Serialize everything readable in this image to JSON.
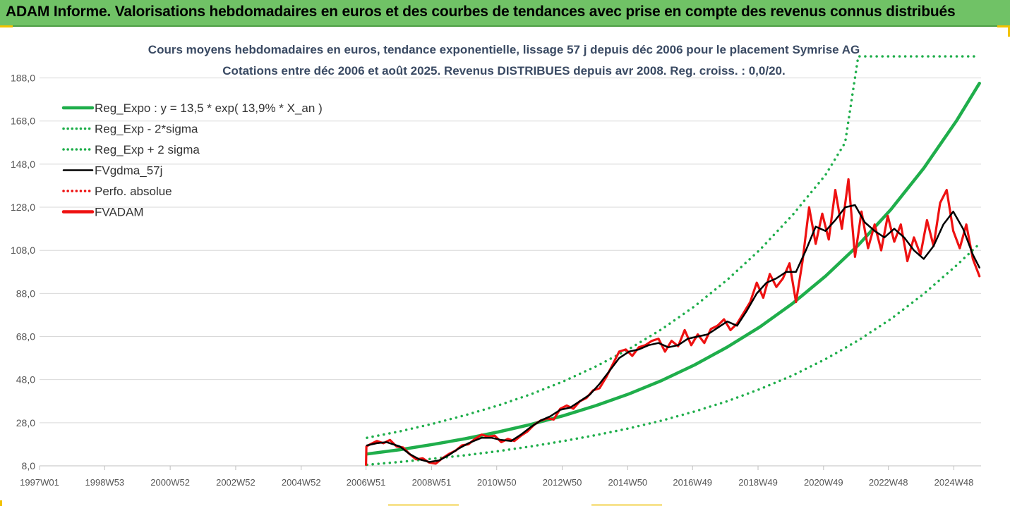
{
  "banner": {
    "title": "ADAM Informe. Valorisations hebdomadaires en euros et des courbes de tendances avec prise en compte des revenus connus distribués"
  },
  "colors": {
    "banner_bg": "#70c266",
    "reg_expo": "#1fae4b",
    "sigma_bands": "#1fae4b",
    "fvgdma": "#000000",
    "fvadam": "#ee1111",
    "perfo": "#ee1111",
    "gridline": "#d9d9d9"
  },
  "chart_data": {
    "type": "line",
    "title": [
      "Cours moyens hebdomadaires en euros, tendance exponentielle, lissage 57 j depuis déc 2006 pour le placement Symrise AG",
      "Cotations entre déc 2006 et août 2025. Revenus DISTRIBUES depuis avr 2008. Reg. croiss. : 0,0/20."
    ],
    "ylim": [
      8,
      198
    ],
    "yticks": [
      "8,0",
      "28,0",
      "48,0",
      "68,0",
      "88,0",
      "108,0",
      "128,0",
      "148,0",
      "168,0",
      "188,0"
    ],
    "xlim": [
      1997.0,
      2025.75
    ],
    "xticks": [
      {
        "label": "1997W01",
        "x": 1997.0
      },
      {
        "label": "1998W53",
        "x": 1998.99
      },
      {
        "label": "2000W52",
        "x": 2000.99
      },
      {
        "label": "2002W52",
        "x": 2002.99
      },
      {
        "label": "2004W52",
        "x": 2004.99
      },
      {
        "label": "2006W51",
        "x": 2006.97
      },
      {
        "label": "2008W51",
        "x": 2008.97
      },
      {
        "label": "2010W50",
        "x": 2010.96
      },
      {
        "label": "2012W50",
        "x": 2012.96
      },
      {
        "label": "2014W50",
        "x": 2014.96
      },
      {
        "label": "2016W49",
        "x": 2016.94
      },
      {
        "label": "2018W49",
        "x": 2018.94
      },
      {
        "label": "2020W49",
        "x": 2020.94
      },
      {
        "label": "2022W48",
        "x": 2022.92
      },
      {
        "label": "2024W48",
        "x": 2024.92
      }
    ],
    "grid": "horizontal",
    "legend_position": "top-left",
    "series": [
      {
        "name": "Reg_Expo : y = 13,5 * exp( 13,9% *  X_an )",
        "style": "solid-thick",
        "color": "#1fae4b",
        "x": [
          2007.0,
          2008.0,
          2009.0,
          2010.0,
          2011.0,
          2012.0,
          2013.0,
          2014.0,
          2015.0,
          2016.0,
          2017.0,
          2018.0,
          2019.0,
          2020.0,
          2021.0,
          2022.0,
          2023.0,
          2024.0,
          2025.0,
          2025.7
        ],
        "y": [
          13.5,
          15.5,
          17.9,
          20.6,
          23.7,
          27.2,
          31.3,
          36.0,
          41.4,
          47.6,
          54.8,
          63.1,
          72.5,
          83.4,
          96.0,
          110.4,
          127.0,
          146.1,
          168.1,
          185.5
        ]
      },
      {
        "name": "Reg_Exp - 2*sigma",
        "style": "dotted",
        "color": "#1fae4b",
        "x": [
          2007.0,
          2008.0,
          2009.0,
          2010.0,
          2011.0,
          2012.0,
          2013.0,
          2014.0,
          2015.0,
          2016.0,
          2017.0,
          2018.0,
          2019.0,
          2020.0,
          2021.0,
          2022.0,
          2023.0,
          2024.0,
          2025.0,
          2025.7
        ],
        "y": [
          8.5,
          9.8,
          11.3,
          12.9,
          14.8,
          17.0,
          19.5,
          22.3,
          25.4,
          29.0,
          33.2,
          38.0,
          43.6,
          50.0,
          57.5,
          66.2,
          76.2,
          87.8,
          101.0,
          111.0
        ]
      },
      {
        "name": "Reg_Exp + 2 sigma",
        "style": "dotted",
        "color": "#1fae4b",
        "x": [
          2007.0,
          2008.0,
          2009.0,
          2010.0,
          2011.0,
          2012.0,
          2013.0,
          2014.0,
          2015.0,
          2016.0,
          2017.0,
          2018.0,
          2019.0,
          2020.0,
          2021.0,
          2021.6,
          2022.0,
          2023.0,
          2024.0,
          2025.0,
          2025.7
        ],
        "y": [
          21.0,
          24.0,
          27.5,
          31.5,
          36.0,
          41.2,
          47.2,
          54.2,
          62.2,
          71.4,
          82.0,
          94.3,
          108.3,
          124.5,
          143.0,
          158.0,
          198.0,
          198.0,
          198.0,
          198.0,
          198.0
        ]
      },
      {
        "name": "FVgdma_57j",
        "style": "solid",
        "color": "#000000",
        "x": [
          2007.0,
          2007.3,
          2007.6,
          2008.0,
          2008.3,
          2008.6,
          2008.9,
          2009.2,
          2009.5,
          2009.8,
          2010.1,
          2010.5,
          2010.8,
          2011.1,
          2011.4,
          2011.7,
          2012.0,
          2012.3,
          2012.6,
          2012.9,
          2013.2,
          2013.5,
          2013.8,
          2014.1,
          2014.4,
          2014.7,
          2015.0,
          2015.3,
          2015.6,
          2015.9,
          2016.2,
          2016.5,
          2016.8,
          2017.1,
          2017.4,
          2017.7,
          2018.0,
          2018.3,
          2018.6,
          2018.9,
          2019.2,
          2019.5,
          2019.8,
          2020.1,
          2020.4,
          2020.7,
          2021.0,
          2021.3,
          2021.6,
          2021.9,
          2022.2,
          2022.5,
          2022.8,
          2023.1,
          2023.4,
          2023.7,
          2024.0,
          2024.3,
          2024.6,
          2024.9,
          2025.2,
          2025.5,
          2025.7
        ],
        "y": [
          17.5,
          18.5,
          19.0,
          17.0,
          13.5,
          11.0,
          9.8,
          10.5,
          13.0,
          16.0,
          18.5,
          21.0,
          21.0,
          20.0,
          19.5,
          22.5,
          26.0,
          29.0,
          31.0,
          34.0,
          35.0,
          38.0,
          41.0,
          46.0,
          52.0,
          58.0,
          61.0,
          62.0,
          64.0,
          65.0,
          63.0,
          64.0,
          67.0,
          68.0,
          69.0,
          72.0,
          75.0,
          73.0,
          80.0,
          88.0,
          93.0,
          95.0,
          98.0,
          98.0,
          108.0,
          119.0,
          117.0,
          122.0,
          128.0,
          129.0,
          121.0,
          117.0,
          114.0,
          118.0,
          114.0,
          108.0,
          104.0,
          110.0,
          120.0,
          126.0,
          118.0,
          106.0,
          100.0
        ]
      },
      {
        "name": "Perfo. absolue",
        "style": "dotted",
        "color": "#ee1111",
        "x": [],
        "y": []
      },
      {
        "name": "FVADAM",
        "style": "solid-thick",
        "color": "#ee1111",
        "x": [
          2006.97,
          2006.98,
          2007.1,
          2007.3,
          2007.5,
          2007.7,
          2007.9,
          2008.1,
          2008.3,
          2008.5,
          2008.7,
          2008.9,
          2009.1,
          2009.3,
          2009.5,
          2009.7,
          2009.9,
          2010.1,
          2010.3,
          2010.5,
          2010.7,
          2010.9,
          2011.1,
          2011.3,
          2011.5,
          2011.7,
          2011.9,
          2012.1,
          2012.3,
          2012.5,
          2012.7,
          2012.9,
          2013.1,
          2013.3,
          2013.5,
          2013.7,
          2013.9,
          2014.1,
          2014.3,
          2014.5,
          2014.7,
          2014.9,
          2015.1,
          2015.3,
          2015.5,
          2015.7,
          2015.9,
          2016.1,
          2016.3,
          2016.5,
          2016.7,
          2016.9,
          2017.1,
          2017.3,
          2017.5,
          2017.7,
          2017.9,
          2018.1,
          2018.3,
          2018.5,
          2018.7,
          2018.9,
          2019.1,
          2019.3,
          2019.5,
          2019.7,
          2019.9,
          2020.1,
          2020.3,
          2020.5,
          2020.7,
          2020.9,
          2021.1,
          2021.3,
          2021.5,
          2021.7,
          2021.9,
          2022.1,
          2022.3,
          2022.5,
          2022.7,
          2022.9,
          2023.1,
          2023.3,
          2023.5,
          2023.7,
          2023.9,
          2024.1,
          2024.3,
          2024.5,
          2024.7,
          2024.9,
          2025.1,
          2025.3,
          2025.5,
          2025.7
        ],
        "y": [
          8.5,
          17.0,
          18.0,
          19.5,
          18.5,
          20.0,
          17.0,
          16.5,
          13.5,
          11.0,
          11.5,
          9.5,
          9.0,
          11.5,
          13.5,
          15.0,
          17.5,
          18.0,
          20.5,
          22.5,
          21.5,
          22.0,
          19.0,
          20.5,
          19.5,
          22.0,
          24.0,
          27.0,
          29.0,
          30.0,
          29.5,
          34.5,
          36.0,
          34.5,
          38.0,
          39.5,
          43.0,
          44.0,
          49.0,
          55.0,
          61.0,
          62.0,
          59.0,
          63.0,
          64.0,
          66.0,
          67.0,
          61.0,
          66.0,
          63.5,
          71.0,
          64.0,
          69.0,
          65.0,
          71.5,
          73.0,
          76.0,
          71.0,
          74.0,
          79.0,
          84.0,
          93.0,
          86.0,
          97.0,
          91.0,
          95.0,
          102.0,
          84.0,
          103.0,
          128.0,
          111.0,
          125.0,
          113.0,
          136.0,
          118.0,
          141.0,
          105.0,
          126.0,
          109.0,
          120.0,
          108.0,
          124.0,
          112.0,
          120.0,
          103.0,
          114.0,
          106.0,
          122.0,
          110.0,
          130.0,
          136.0,
          117.0,
          109.0,
          120.0,
          104.0,
          96.0
        ]
      }
    ]
  }
}
